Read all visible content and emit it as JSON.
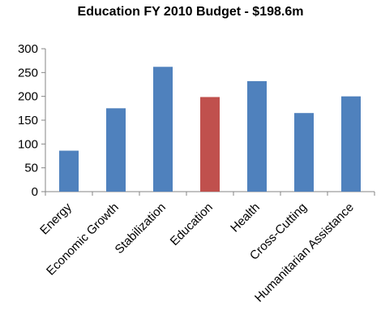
{
  "chart_data": {
    "type": "bar",
    "title": "Education FY 2010 Budget - $198.6m",
    "xlabel": "",
    "ylabel": "",
    "categories": [
      "Energy",
      "Economic Growth",
      "Stabilization",
      "Education",
      "Health",
      "Cross-Cutting",
      "Humanitarian Assistance"
    ],
    "values": [
      86,
      175,
      262,
      198.6,
      232,
      165,
      200
    ],
    "ylim": [
      0,
      300
    ],
    "yticks": [
      0,
      50,
      100,
      150,
      200,
      250,
      300
    ],
    "grid": false,
    "legend": "none",
    "colors": {
      "default": "#4F81BD",
      "highlight": "#C0504D",
      "axis": "#868686"
    },
    "highlight_index": 3
  }
}
